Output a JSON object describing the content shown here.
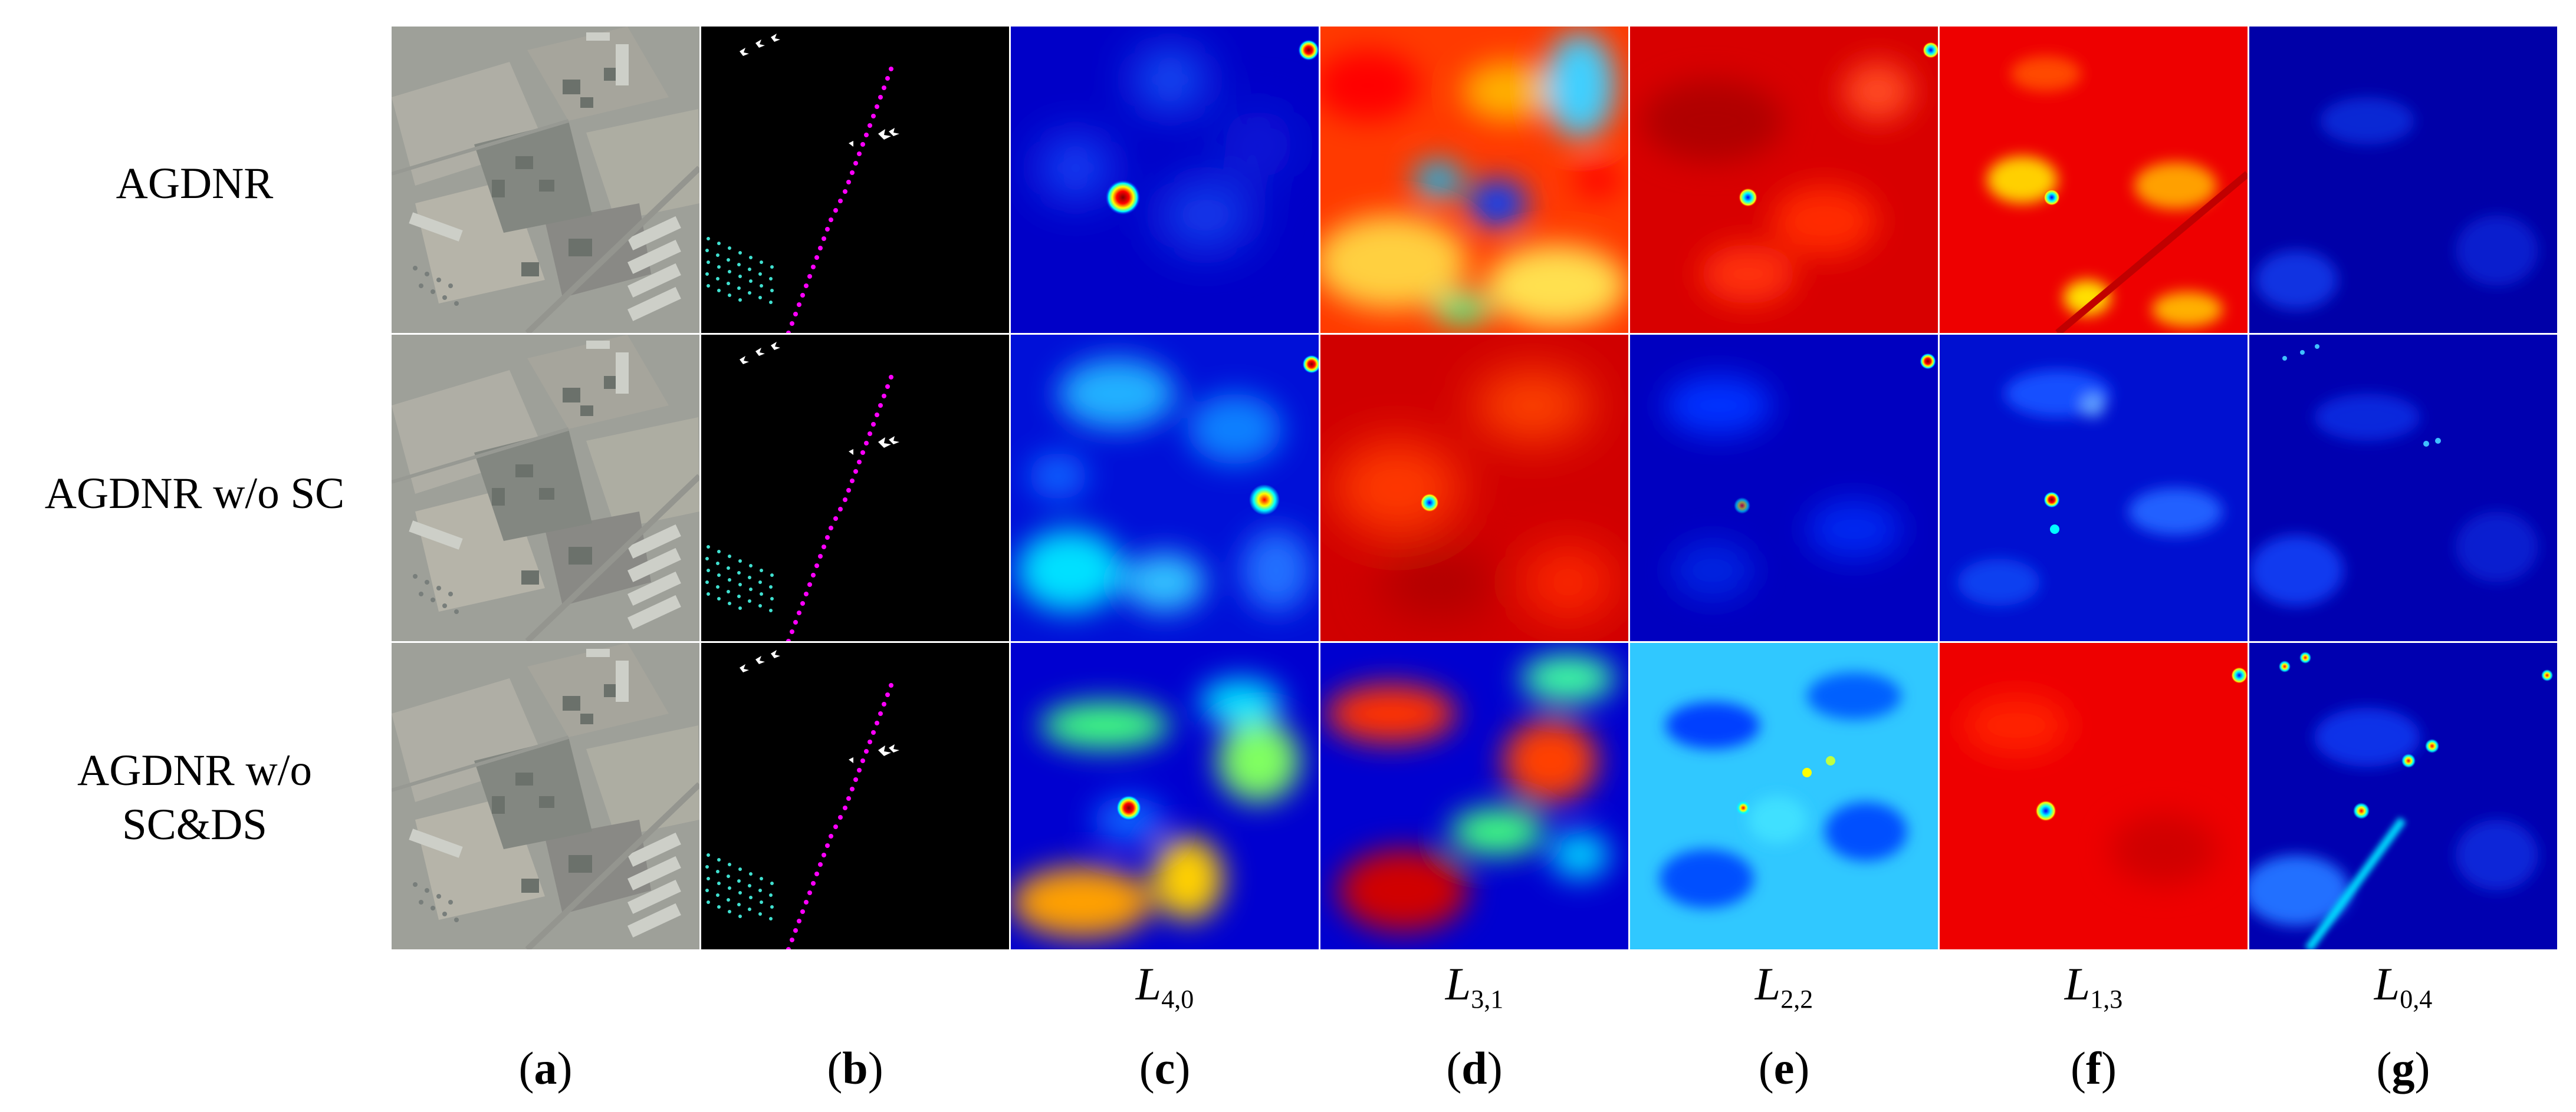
{
  "rows": [
    {
      "label": "AGDNR"
    },
    {
      "label": "AGDNR w/o SC"
    },
    {
      "label_line1": "AGDNR w/o",
      "label_line2": "SC&DS"
    }
  ],
  "layer_labels": [
    {
      "base": "L",
      "index": "4,0"
    },
    {
      "base": "L",
      "index": "3,1"
    },
    {
      "base": "L",
      "index": "2,2"
    },
    {
      "base": "L",
      "index": "1,3"
    },
    {
      "base": "L",
      "index": "0,4"
    }
  ],
  "panel_letters": [
    "a",
    "b",
    "c",
    "d",
    "e",
    "f",
    "g"
  ],
  "colors": {
    "jet_low": "#00008f",
    "jet_blue": "#0000ff",
    "jet_cyan": "#00ffff",
    "jet_green": "#7fff7f",
    "jet_yellow": "#ffff00",
    "jet_red": "#ff0000",
    "jet_dark_red": "#800000",
    "mask_bg": "#000000",
    "mask_cyan": "#40e0d0",
    "mask_magenta": "#ff00ff",
    "mask_white": "#ffffff"
  }
}
